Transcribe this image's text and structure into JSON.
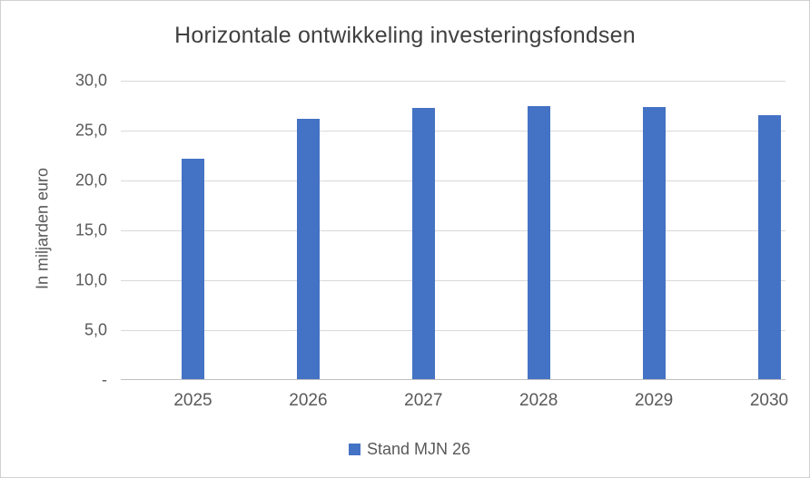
{
  "chart_data": {
    "type": "bar",
    "title": "Horizontale ontwikkeling investeringsfondsen",
    "ylabel": "In miljarden euro",
    "xlabel": "",
    "categories": [
      "2025",
      "2026",
      "2027",
      "2028",
      "2029",
      "2030"
    ],
    "series": [
      {
        "name": "Stand MJN 26",
        "values": [
          22.1,
          26.1,
          27.2,
          27.4,
          27.3,
          26.5
        ]
      }
    ],
    "ylim": [
      0,
      30
    ],
    "ytick_step": 5,
    "ytick_labels": [
      "-",
      "5,0",
      "10,0",
      "15,0",
      "20,0",
      "25,0",
      "30,0"
    ],
    "grid": true,
    "legend_position": "bottom",
    "bar_color": "#4472C4",
    "gridline_color": "#D9D9D9",
    "axis_line_color": "#BFBFBF",
    "text_color": "#595959",
    "title_color": "#404040"
  }
}
